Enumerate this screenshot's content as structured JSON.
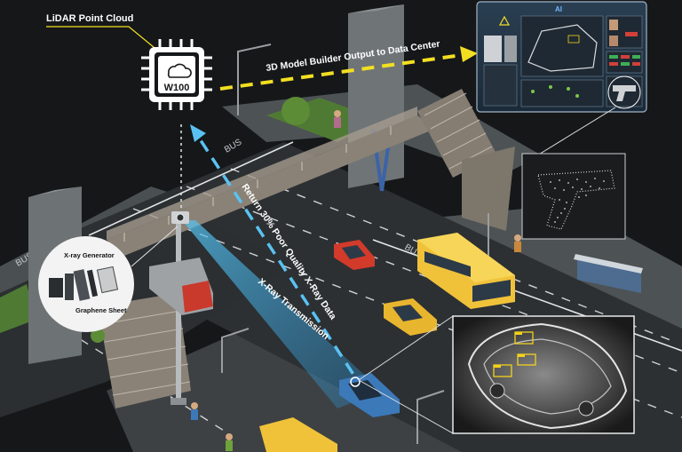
{
  "labels": {
    "lidar": "LiDAR Point Cloud",
    "chip": "W100",
    "model_output": "3D Model Builder Output to Data Center",
    "return_data": "Return 30% Poor Quality X-Ray Data",
    "transmission": "X-Ray Transmission",
    "xray_generator": "X-ray Generator",
    "graphene_sheet": "Graphene Sheet",
    "road_bus": "BUS",
    "dashboard_logo": "AI"
  },
  "colors": {
    "background": "#151719",
    "road": "#2f3336",
    "sidewalk": "#52575a",
    "yellow_arrow": "#f2df22",
    "blue_beam": "#4bb8ec",
    "taxi": "#e8b52e",
    "bus": "#f0c23a",
    "red_car": "#d23a2a",
    "blue_car": "#3c79b8",
    "grass": "#5c8a3a",
    "detection_box": "#f2d21c"
  },
  "icons": {
    "chip": "microchip-icon",
    "cloud": "cloud-icon",
    "gun": "handgun-point-cloud-icon",
    "camera": "lidar-camera-icon"
  }
}
